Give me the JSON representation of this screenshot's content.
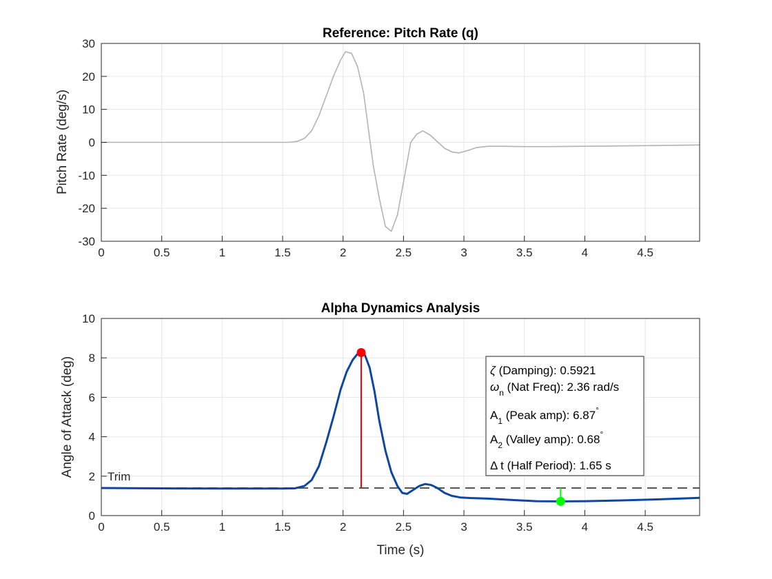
{
  "chart_data": [
    {
      "type": "line",
      "title": "Reference: Pitch Rate (q)",
      "xlabel": "",
      "ylabel": "Pitch Rate (deg/s)",
      "xlim": [
        0,
        4.95
      ],
      "ylim": [
        -30,
        30
      ],
      "xticks": [
        "0",
        "0.5",
        "1",
        "1.5",
        "2",
        "2.5",
        "3",
        "3.5",
        "4",
        "4.5"
      ],
      "yticks": [
        "30",
        "20",
        "10",
        "0",
        "-10",
        "-20",
        "-30"
      ],
      "grid": true,
      "series": [
        {
          "color": "#b3b3b3",
          "x": [
            0,
            0.5,
            1,
            1.5,
            1.55,
            1.62,
            1.68,
            1.74,
            1.8,
            1.86,
            1.92,
            1.98,
            2.02,
            2.07,
            2.12,
            2.17,
            2.21,
            2.25,
            2.3,
            2.35,
            2.4,
            2.45,
            2.5,
            2.56,
            2.61,
            2.66,
            2.72,
            2.78,
            2.84,
            2.9,
            2.96,
            3.03,
            3.1,
            3.2,
            3.3,
            3.5,
            3.7,
            4.0,
            4.5,
            4.95
          ],
          "y": [
            0,
            0,
            0,
            0,
            0,
            0.3,
            1.2,
            3.5,
            8,
            14,
            20,
            25,
            27.5,
            27,
            23,
            15,
            4,
            -7,
            -17,
            -25.5,
            -27,
            -22,
            -12,
            0,
            2.5,
            3.5,
            2.2,
            0.2,
            -1.8,
            -2.9,
            -3.2,
            -2.5,
            -1.6,
            -1.2,
            -1.2,
            -1.3,
            -1.3,
            -1.2,
            -1.0,
            -0.8
          ]
        }
      ]
    },
    {
      "type": "line",
      "title": "Alpha Dynamics Analysis",
      "xlabel": "Time (s)",
      "ylabel": "Angle of Attack (deg)",
      "xlim": [
        0,
        4.95
      ],
      "ylim": [
        0,
        10
      ],
      "xticks": [
        "0",
        "0.5",
        "1",
        "1.5",
        "2",
        "2.5",
        "3",
        "3.5",
        "4",
        "4.5"
      ],
      "yticks": [
        "10",
        "8",
        "6",
        "4",
        "2",
        "0"
      ],
      "grid": true,
      "series": [
        {
          "color": "#0d47a1",
          "x": [
            0,
            0.5,
            1,
            1.5,
            1.6,
            1.68,
            1.74,
            1.8,
            1.86,
            1.92,
            1.98,
            2.03,
            2.08,
            2.12,
            2.15,
            2.18,
            2.22,
            2.26,
            2.3,
            2.35,
            2.4,
            2.45,
            2.49,
            2.53,
            2.58,
            2.63,
            2.68,
            2.73,
            2.78,
            2.84,
            2.9,
            2.97,
            3.05,
            3.2,
            3.4,
            3.6,
            3.8,
            4.0,
            4.3,
            4.6,
            4.95
          ],
          "y": [
            1.4,
            1.38,
            1.37,
            1.37,
            1.38,
            1.5,
            1.8,
            2.5,
            3.7,
            5.0,
            6.4,
            7.3,
            7.9,
            8.2,
            8.27,
            8.15,
            7.5,
            6.3,
            4.8,
            3.3,
            2.2,
            1.5,
            1.15,
            1.1,
            1.3,
            1.5,
            1.6,
            1.55,
            1.4,
            1.15,
            1.0,
            0.92,
            0.89,
            0.86,
            0.79,
            0.73,
            0.72,
            0.73,
            0.77,
            0.82,
            0.9
          ]
        }
      ],
      "trim_line": {
        "value": 1.4,
        "label": "Trim",
        "color": "#555555"
      },
      "peak_marker": {
        "x": 2.15,
        "y": 8.27,
        "color": "#ff0000"
      },
      "valley_marker": {
        "x": 3.8,
        "y": 0.72,
        "color": "#00ff00"
      }
    }
  ],
  "info_box": {
    "damping": {
      "symbol": "ζ",
      "text": " (Damping): 0.5921"
    },
    "nat_freq": {
      "symbol": "ω",
      "sub": "n",
      "text": " (Nat Freq): 2.36 rad/s"
    },
    "peak_amp": {
      "symbol": "A",
      "sub": "1",
      "text": " (Peak amp): 6.87",
      "sup": "°"
    },
    "valley_amp": {
      "symbol": "A",
      "sub": "2",
      "text": " (Valley amp): 0.68",
      "sup": "°"
    },
    "half_period": {
      "symbol": "Δ",
      "text": " t (Half Period): 1.65 s"
    }
  }
}
